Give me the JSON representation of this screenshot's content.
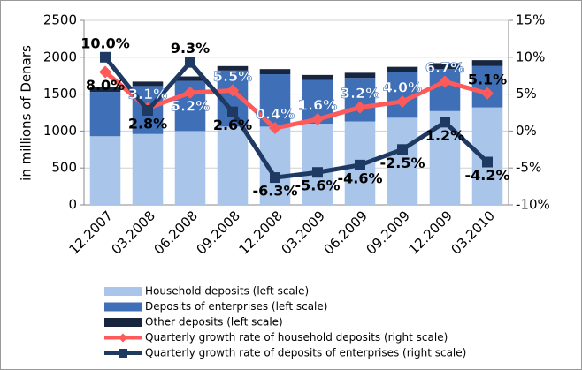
{
  "chart_data": {
    "type": "bar",
    "stacked": true,
    "y_label": "in millions of Denars",
    "categories": [
      "12.2007",
      "03.2008",
      "06.2008",
      "09.2008",
      "12.2008",
      "03.2009",
      "06.2009",
      "09.2009",
      "12.2009",
      "03.2010"
    ],
    "ylim": [
      0,
      2500
    ],
    "yticks": [
      0,
      500,
      1000,
      1500,
      2000,
      2500
    ],
    "y2lim": [
      -10,
      15
    ],
    "y2ticks": [
      {
        "value": -10,
        "label": "-10%"
      },
      {
        "value": -5,
        "label": "-5%"
      },
      {
        "value": 0,
        "label": "0%"
      },
      {
        "value": 5,
        "label": "5%"
      },
      {
        "value": 10,
        "label": "10%"
      },
      {
        "value": 15,
        "label": "15%"
      }
    ],
    "grid": true,
    "series": [
      {
        "name": "Household deposits  (left scale)",
        "type": "bar",
        "color": "#a9c6ea",
        "values": [
          930,
          960,
          1000,
          1060,
          1060,
          1100,
          1130,
          1180,
          1270,
          1320
        ]
      },
      {
        "name": "Deposits of enterprises (left scale)",
        "type": "bar",
        "color": "#3f6fb6",
        "values": [
          600,
          650,
          680,
          760,
          710,
          590,
          590,
          620,
          570,
          560
        ]
      },
      {
        "name": "Other deposits  (left scale)",
        "type": "bar",
        "color": "#17253f",
        "values": [
          70,
          60,
          60,
          60,
          70,
          70,
          70,
          70,
          80,
          80
        ]
      },
      {
        "name": "Quarterly growth rate of household deposits (right scale)",
        "type": "line",
        "axis": "y2",
        "color": "#ff5a5a",
        "marker": "diamond",
        "values": [
          8.0,
          3.1,
          5.2,
          5.5,
          0.4,
          1.6,
          3.2,
          4.0,
          6.7,
          5.1
        ],
        "value_labels": [
          "8.0%",
          "3.1%",
          "5.2%",
          "5.5%",
          "0.4%",
          "1.6%",
          "3.2%",
          "4.0%",
          "6.7%",
          "5.1%"
        ]
      },
      {
        "name": "Quarterly growth rate of deposits of enterprises (right scale)",
        "type": "line",
        "axis": "y2",
        "color": "#1f3a62",
        "marker": "square",
        "values": [
          10.0,
          2.8,
          9.3,
          2.6,
          -6.3,
          -5.6,
          -4.6,
          -2.5,
          1.2,
          -4.2
        ],
        "value_labels": [
          "10.0%",
          "2.8%",
          "9.3%",
          "2.6%",
          "-6.3%",
          "-5.6%",
          "-4.6%",
          "-2.5%",
          "1.2%",
          "-4.2%"
        ]
      }
    ]
  }
}
